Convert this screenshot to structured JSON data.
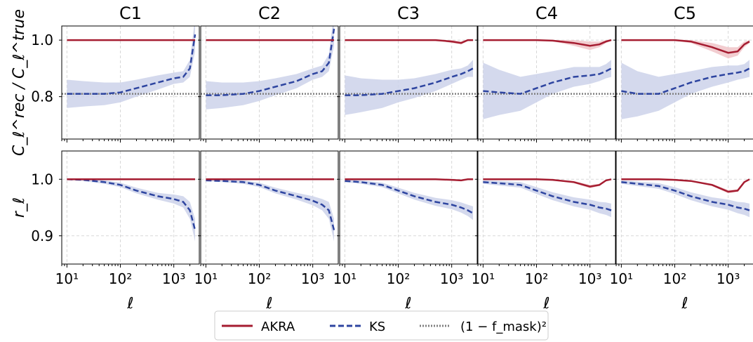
{
  "chart_data": {
    "type": "line",
    "panel_titles": [
      "C1",
      "C2",
      "C3",
      "C4",
      "C5"
    ],
    "x_scale": "log",
    "xlim": [
      8,
      3000
    ],
    "x_tick_labels": [
      "10¹",
      "10²",
      "10³"
    ],
    "xlabel": "ℓ",
    "grid": "dashed",
    "legend_placement": "bottom-center",
    "colors": {
      "AKRA": "#a51c30",
      "KS": "#2e45a0",
      "threshold": "#808080",
      "akra_band": "#f0c4c8",
      "ks_band": "#cdd2ea"
    },
    "legend": [
      "AKRA",
      "KS",
      "(1 − f_mask)²"
    ],
    "rows": [
      {
        "ylabel": "C_ℓ^rec / C_ℓ^true",
        "ylim": [
          0.65,
          1.05
        ],
        "y_ticks": [
          0.8,
          1.0
        ],
        "y_tick_labels": [
          "0.8",
          "1.0"
        ],
        "reference_line": {
          "name": "(1 − f_mask)²",
          "value": 0.81
        },
        "panels": [
          {
            "title": "C1",
            "x": [
              10,
              20,
              50,
              100,
              200,
              500,
              1000,
              1500,
              2000,
              2500
            ],
            "series": [
              {
                "name": "AKRA",
                "values": [
                  1.0,
                  1.0,
                  1.0,
                  1.0,
                  1.0,
                  1.0,
                  1.0,
                  1.0,
                  1.0,
                  1.0
                ],
                "band_halfwidth": [
                  0,
                  0,
                  0,
                  0,
                  0,
                  0,
                  0,
                  0,
                  0,
                  0
                ]
              },
              {
                "name": "KS",
                "values": [
                  0.81,
                  0.81,
                  0.81,
                  0.815,
                  0.83,
                  0.85,
                  0.865,
                  0.87,
                  0.9,
                  1.02
                ],
                "band_halfwidth": [
                  0.05,
                  0.045,
                  0.04,
                  0.035,
                  0.03,
                  0.025,
                  0.02,
                  0.02,
                  0.03,
                  0.06
                ]
              }
            ]
          },
          {
            "title": "C2",
            "x": [
              10,
              20,
              50,
              100,
              200,
              500,
              1000,
              1500,
              2000,
              2500
            ],
            "series": [
              {
                "name": "AKRA",
                "values": [
                  1.0,
                  1.0,
                  1.0,
                  1.0,
                  1.0,
                  1.0,
                  1.0,
                  1.0,
                  1.0,
                  1.0
                ],
                "band_halfwidth": [
                  0,
                  0,
                  0,
                  0,
                  0,
                  0,
                  0,
                  0,
                  0,
                  0
                ]
              },
              {
                "name": "KS",
                "values": [
                  0.805,
                  0.805,
                  0.81,
                  0.82,
                  0.835,
                  0.855,
                  0.88,
                  0.89,
                  0.92,
                  1.04
                ],
                "band_halfwidth": [
                  0.05,
                  0.045,
                  0.04,
                  0.035,
                  0.03,
                  0.025,
                  0.02,
                  0.02,
                  0.03,
                  0.06
                ]
              }
            ]
          },
          {
            "title": "C3",
            "x": [
              10,
              20,
              50,
              100,
              200,
              500,
              1000,
              1500,
              2000,
              2500
            ],
            "series": [
              {
                "name": "AKRA",
                "values": [
                  1.0,
                  1.0,
                  1.0,
                  1.0,
                  1.0,
                  1.0,
                  0.995,
                  0.99,
                  1.0,
                  1.0
                ],
                "band_halfwidth": [
                  0,
                  0,
                  0,
                  0,
                  0,
                  0,
                  0.005,
                  0.005,
                  0.003,
                  0.003
                ]
              },
              {
                "name": "KS",
                "values": [
                  0.805,
                  0.805,
                  0.81,
                  0.82,
                  0.83,
                  0.85,
                  0.87,
                  0.88,
                  0.89,
                  0.9
                ],
                "band_halfwidth": [
                  0.07,
                  0.06,
                  0.05,
                  0.04,
                  0.035,
                  0.03,
                  0.025,
                  0.02,
                  0.02,
                  0.03
                ]
              }
            ]
          },
          {
            "title": "C4",
            "x": [
              10,
              20,
              50,
              100,
              200,
              500,
              1000,
              1500,
              2000,
              2500
            ],
            "series": [
              {
                "name": "AKRA",
                "values": [
                  1.0,
                  1.0,
                  1.0,
                  1.0,
                  0.998,
                  0.99,
                  0.98,
                  0.985,
                  0.995,
                  1.0
                ],
                "band_halfwidth": [
                  0,
                  0,
                  0,
                  0,
                  0.002,
                  0.01,
                  0.015,
                  0.01,
                  0.005,
                  0.003
                ]
              },
              {
                "name": "KS",
                "values": [
                  0.82,
                  0.815,
                  0.81,
                  0.83,
                  0.85,
                  0.87,
                  0.875,
                  0.88,
                  0.89,
                  0.9
                ],
                "band_halfwidth": [
                  0.1,
                  0.08,
                  0.06,
                  0.05,
                  0.04,
                  0.035,
                  0.03,
                  0.025,
                  0.025,
                  0.03
                ]
              }
            ]
          },
          {
            "title": "C5",
            "x": [
              10,
              20,
              50,
              100,
              200,
              500,
              1000,
              1500,
              2000,
              2500
            ],
            "series": [
              {
                "name": "AKRA",
                "values": [
                  1.0,
                  1.0,
                  1.0,
                  1.0,
                  0.995,
                  0.975,
                  0.955,
                  0.96,
                  0.985,
                  0.995
                ],
                "band_halfwidth": [
                  0,
                  0,
                  0,
                  0.002,
                  0.005,
                  0.015,
                  0.02,
                  0.015,
                  0.01,
                  0.005
                ]
              },
              {
                "name": "KS",
                "values": [
                  0.82,
                  0.81,
                  0.81,
                  0.83,
                  0.85,
                  0.87,
                  0.88,
                  0.885,
                  0.89,
                  0.9
                ],
                "band_halfwidth": [
                  0.1,
                  0.08,
                  0.06,
                  0.05,
                  0.04,
                  0.035,
                  0.03,
                  0.025,
                  0.025,
                  0.03
                ]
              }
            ]
          }
        ]
      },
      {
        "ylabel": "r_ℓ",
        "ylim": [
          0.85,
          1.05
        ],
        "y_ticks": [
          0.9,
          1.0
        ],
        "y_tick_labels": [
          "0.9",
          "1.0"
        ],
        "panels": [
          {
            "title": "C1",
            "x": [
              10,
              20,
              50,
              100,
              200,
              500,
              1000,
              1500,
              2000,
              2500
            ],
            "series": [
              {
                "name": "AKRA",
                "values": [
                  1.0,
                  1.0,
                  1.0,
                  1.0,
                  1.0,
                  1.0,
                  1.0,
                  1.0,
                  1.0,
                  1.0
                ],
                "band_halfwidth": [
                  0,
                  0,
                  0,
                  0,
                  0,
                  0,
                  0,
                  0,
                  0,
                  0
                ]
              },
              {
                "name": "KS",
                "values": [
                  1.0,
                  0.999,
                  0.995,
                  0.99,
                  0.98,
                  0.97,
                  0.965,
                  0.96,
                  0.945,
                  0.91
                ],
                "band_halfwidth": [
                  0.001,
                  0.002,
                  0.003,
                  0.004,
                  0.005,
                  0.006,
                  0.008,
                  0.01,
                  0.015,
                  0.02
                ]
              }
            ]
          },
          {
            "title": "C2",
            "x": [
              10,
              20,
              50,
              100,
              200,
              500,
              1000,
              1500,
              2000,
              2500
            ],
            "series": [
              {
                "name": "AKRA",
                "values": [
                  1.0,
                  1.0,
                  1.0,
                  1.0,
                  1.0,
                  1.0,
                  1.0,
                  1.0,
                  1.0,
                  1.0
                ],
                "band_halfwidth": [
                  0,
                  0,
                  0,
                  0,
                  0,
                  0,
                  0,
                  0,
                  0,
                  0
                ]
              },
              {
                "name": "KS",
                "values": [
                  0.998,
                  0.997,
                  0.995,
                  0.99,
                  0.98,
                  0.97,
                  0.962,
                  0.955,
                  0.945,
                  0.91
                ],
                "band_halfwidth": [
                  0.001,
                  0.002,
                  0.003,
                  0.004,
                  0.005,
                  0.006,
                  0.008,
                  0.01,
                  0.015,
                  0.02
                ]
              }
            ]
          },
          {
            "title": "C3",
            "x": [
              10,
              20,
              50,
              100,
              200,
              500,
              1000,
              1500,
              2000,
              2500
            ],
            "series": [
              {
                "name": "AKRA",
                "values": [
                  1.0,
                  1.0,
                  1.0,
                  1.0,
                  1.0,
                  1.0,
                  0.999,
                  0.998,
                  1.0,
                  1.0
                ],
                "band_halfwidth": [
                  0,
                  0,
                  0,
                  0,
                  0,
                  0,
                  0.001,
                  0.001,
                  0.001,
                  0.001
                ]
              },
              {
                "name": "KS",
                "values": [
                  0.997,
                  0.995,
                  0.99,
                  0.98,
                  0.97,
                  0.96,
                  0.955,
                  0.95,
                  0.945,
                  0.94
                ],
                "band_halfwidth": [
                  0.002,
                  0.003,
                  0.004,
                  0.005,
                  0.006,
                  0.007,
                  0.008,
                  0.009,
                  0.01,
                  0.012
                ]
              }
            ]
          },
          {
            "title": "C4",
            "x": [
              10,
              20,
              50,
              100,
              200,
              500,
              1000,
              1500,
              2000,
              2500
            ],
            "series": [
              {
                "name": "AKRA",
                "values": [
                  1.0,
                  1.0,
                  1.0,
                  1.0,
                  0.999,
                  0.995,
                  0.987,
                  0.99,
                  0.998,
                  1.0
                ],
                "band_halfwidth": [
                  0,
                  0,
                  0,
                  0,
                  0.001,
                  0.002,
                  0.003,
                  0.002,
                  0.001,
                  0.001
                ]
              },
              {
                "name": "KS",
                "values": [
                  0.995,
                  0.993,
                  0.99,
                  0.98,
                  0.97,
                  0.96,
                  0.955,
                  0.95,
                  0.948,
                  0.945
                ],
                "band_halfwidth": [
                  0.003,
                  0.004,
                  0.005,
                  0.006,
                  0.007,
                  0.008,
                  0.009,
                  0.01,
                  0.011,
                  0.012
                ]
              }
            ]
          },
          {
            "title": "C5",
            "x": [
              10,
              20,
              50,
              100,
              200,
              500,
              1000,
              1500,
              2000,
              2500
            ],
            "series": [
              {
                "name": "AKRA",
                "values": [
                  1.0,
                  1.0,
                  1.0,
                  0.999,
                  0.997,
                  0.99,
                  0.978,
                  0.98,
                  0.995,
                  1.0
                ],
                "band_halfwidth": [
                  0,
                  0,
                  0,
                  0.001,
                  0.001,
                  0.002,
                  0.003,
                  0.002,
                  0.001,
                  0.001
                ]
              },
              {
                "name": "KS",
                "values": [
                  0.995,
                  0.992,
                  0.988,
                  0.98,
                  0.97,
                  0.96,
                  0.955,
                  0.95,
                  0.948,
                  0.945
                ],
                "band_halfwidth": [
                  0.003,
                  0.004,
                  0.005,
                  0.006,
                  0.007,
                  0.008,
                  0.009,
                  0.01,
                  0.011,
                  0.012
                ]
              }
            ]
          }
        ]
      }
    ]
  }
}
